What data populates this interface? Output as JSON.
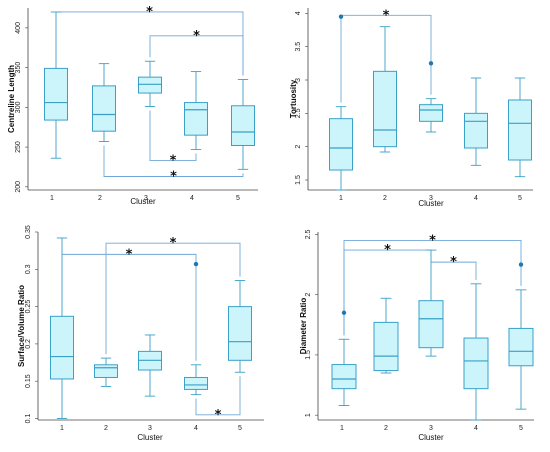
{
  "colors": {
    "box_fill": "#ccf4fb",
    "box_stroke": "#3aa0c8",
    "bracket": "#6fa8d8",
    "outlier": "#1f78b4"
  },
  "chart_data": [
    {
      "type": "box",
      "xlabel": "Cluster",
      "ylabel": "Centreline Length",
      "categories": [
        "1",
        "2",
        "3",
        "4",
        "5"
      ],
      "ylim": [
        196,
        425
      ],
      "yticks": [
        "200",
        "250",
        "300",
        "350",
        "400"
      ],
      "boxes": [
        {
          "min": 236,
          "q1": 284,
          "median": 306,
          "q3": 349,
          "max": 420,
          "outliers": []
        },
        {
          "min": 257,
          "q1": 270,
          "median": 291,
          "q3": 327,
          "max": 355,
          "outliers": []
        },
        {
          "min": 301,
          "q1": 318,
          "median": 329,
          "q3": 338,
          "max": 358,
          "outliers": []
        },
        {
          "min": 247,
          "q1": 265,
          "median": 297,
          "q3": 306,
          "max": 345,
          "outliers": []
        },
        {
          "min": 222,
          "q1": 252,
          "median": 269,
          "q3": 302,
          "max": 335,
          "outliers": []
        }
      ],
      "significance": [
        {
          "from": "1",
          "to": "5",
          "y": 420,
          "label": "*"
        },
        {
          "from": "3",
          "to": "5",
          "y": 390,
          "label": "*"
        },
        {
          "from": "3",
          "to": "4",
          "y": 233,
          "label": "*",
          "below": true
        },
        {
          "from": "2",
          "to": "5",
          "y": 213,
          "label": "*",
          "below": true
        }
      ]
    },
    {
      "type": "box",
      "xlabel": "Cluster",
      "ylabel": "Tortuosity",
      "categories": [
        "1",
        "2",
        "3",
        "4",
        "5"
      ],
      "ylim": [
        1.35,
        4.08
      ],
      "yticks": [
        "1.5",
        "2",
        "2.5",
        "3",
        "3.5",
        "4"
      ],
      "boxes": [
        {
          "min": 1.35,
          "q1": 1.65,
          "median": 1.98,
          "q3": 2.42,
          "max": 2.6,
          "outliers": [
            3.95
          ]
        },
        {
          "min": 1.92,
          "q1": 2.0,
          "median": 2.25,
          "q3": 3.13,
          "max": 3.8,
          "outliers": []
        },
        {
          "min": 2.22,
          "q1": 2.38,
          "median": 2.55,
          "q3": 2.63,
          "max": 2.72,
          "outliers": [
            3.25
          ]
        },
        {
          "min": 1.72,
          "q1": 1.98,
          "median": 2.38,
          "q3": 2.5,
          "max": 3.03,
          "outliers": []
        },
        {
          "min": 1.55,
          "q1": 1.8,
          "median": 2.35,
          "q3": 2.7,
          "max": 3.03,
          "outliers": []
        }
      ],
      "significance": [
        {
          "from": "1",
          "to": "3",
          "y": 3.97,
          "label": "*"
        }
      ]
    },
    {
      "type": "box",
      "xlabel": "Cluster",
      "ylabel": "Surface/Volume Ratio",
      "categories": [
        "1",
        "2",
        "3",
        "4",
        "5"
      ],
      "ylim": [
        0.098,
        0.35
      ],
      "yticks": [
        "0.1",
        "0.15",
        "0.2",
        "0.25",
        "0.3",
        "0.35"
      ],
      "boxes": [
        {
          "min": 0.1,
          "q1": 0.153,
          "median": 0.183,
          "q3": 0.237,
          "max": 0.342,
          "outliers": []
        },
        {
          "min": 0.143,
          "q1": 0.155,
          "median": 0.168,
          "q3": 0.172,
          "max": 0.181,
          "outliers": []
        },
        {
          "min": 0.13,
          "q1": 0.165,
          "median": 0.178,
          "q3": 0.19,
          "max": 0.212,
          "outliers": []
        },
        {
          "min": 0.132,
          "q1": 0.139,
          "median": 0.145,
          "q3": 0.155,
          "max": 0.172,
          "outliers": [
            0.307
          ]
        },
        {
          "min": 0.162,
          "q1": 0.178,
          "median": 0.203,
          "q3": 0.25,
          "max": 0.285,
          "outliers": []
        }
      ],
      "significance": [
        {
          "from": "1",
          "to": "4",
          "y": 0.32,
          "label": "*"
        },
        {
          "from": "2",
          "to": "5",
          "y": 0.335,
          "label": "*"
        },
        {
          "from": "4",
          "to": "5",
          "y": 0.105,
          "label": "*",
          "below": true
        }
      ]
    },
    {
      "type": "box",
      "xlabel": "Cluster",
      "ylabel": "Diameter Ratio",
      "categories": [
        "1",
        "2",
        "3",
        "4",
        "5"
      ],
      "ylim": [
        0.96,
        2.52
      ],
      "yticks": [
        "1",
        "1.5",
        "2",
        "2.5"
      ],
      "boxes": [
        {
          "min": 1.08,
          "q1": 1.22,
          "median": 1.3,
          "q3": 1.42,
          "max": 1.63,
          "outliers": [
            1.85
          ]
        },
        {
          "min": 1.35,
          "q1": 1.37,
          "median": 1.49,
          "q3": 1.77,
          "max": 1.97,
          "outliers": []
        },
        {
          "min": 1.49,
          "q1": 1.56,
          "median": 1.8,
          "q3": 1.95,
          "max": 2.37,
          "outliers": []
        },
        {
          "min": 0.96,
          "q1": 1.22,
          "median": 1.45,
          "q3": 1.64,
          "max": 2.09,
          "outliers": []
        },
        {
          "min": 1.05,
          "q1": 1.41,
          "median": 1.53,
          "q3": 1.72,
          "max": 2.04,
          "outliers": [
            2.25
          ]
        }
      ],
      "significance": [
        {
          "from": "1",
          "to": "3",
          "y": 2.37,
          "label": "*"
        },
        {
          "from": "3",
          "to": "4",
          "y": 2.27,
          "label": "*"
        },
        {
          "from": "1",
          "to": "5",
          "y": 2.45,
          "label": "*"
        }
      ]
    }
  ]
}
